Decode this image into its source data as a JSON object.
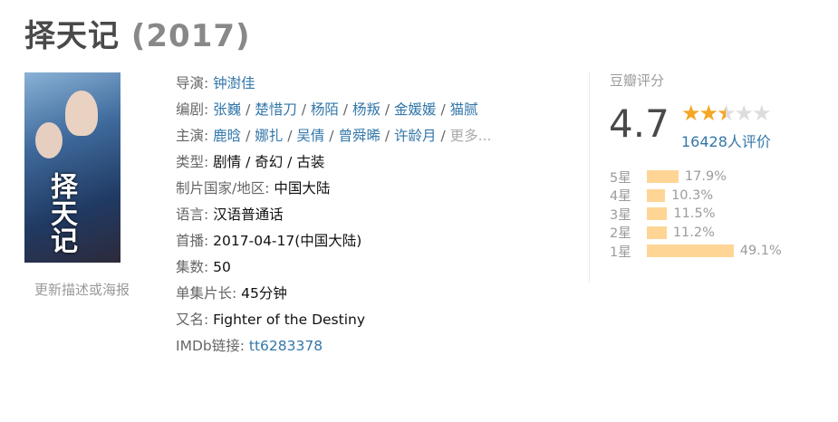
{
  "title": "择天记",
  "year": "(2017)",
  "poster": {
    "text": "择天记"
  },
  "update_link": "更新描述或海报",
  "info": {
    "director_label": "导演",
    "director": [
      "钟澍佳"
    ],
    "writer_label": "编剧",
    "writers": [
      "张巍",
      "楚惜刀",
      "杨陌",
      "杨叛",
      "金媛媛",
      "猫腻"
    ],
    "cast_label": "主演",
    "cast": [
      "鹿晗",
      "娜扎",
      "吴倩",
      "曾舜晞",
      "许龄月"
    ],
    "more": "更多...",
    "genre_label": "类型",
    "genres": "剧情 / 奇幻 / 古装",
    "country_label": "制片国家/地区",
    "country": "中国大陆",
    "language_label": "语言",
    "language": "汉语普通话",
    "premiere_label": "首播",
    "premiere": "2017-04-17(中国大陆)",
    "episodes_label": "集数",
    "episodes": "50",
    "runtime_label": "单集片长",
    "runtime": "45分钟",
    "aka_label": "又名",
    "aka": "Fighter of the Destiny",
    "imdb_label": "IMDb链接",
    "imdb": "tt6283378"
  },
  "rating": {
    "label": "豆瓣评分",
    "score": "4.7",
    "stars": 2.5,
    "votes": "16428人评价",
    "bar_color": "#ffd596",
    "star_color": "#f5a623",
    "breakdown": [
      {
        "label": "5星",
        "pct": "17.9%",
        "value": 17.9
      },
      {
        "label": "4星",
        "pct": "10.3%",
        "value": 10.3
      },
      {
        "label": "3星",
        "pct": "11.5%",
        "value": 11.5
      },
      {
        "label": "2星",
        "pct": "11.2%",
        "value": 11.2
      },
      {
        "label": "1星",
        "pct": "49.1%",
        "value": 49.1
      }
    ]
  }
}
